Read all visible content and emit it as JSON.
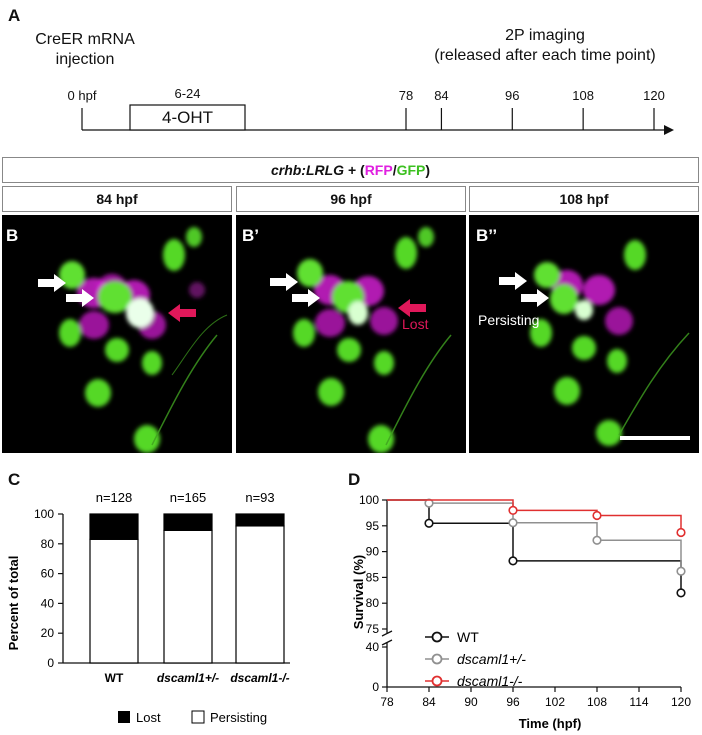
{
  "panel_a": {
    "letter": "A",
    "left_label_1": "CreER mRNA",
    "left_label_2": "injection",
    "right_label_1": "2P imaging",
    "right_label_2": "(released after each time point)",
    "box_label": "4-OHT",
    "box_range_label": "6-24",
    "ticks": [
      {
        "label": "0 hpf",
        "hpf": 0
      },
      {
        "label": "78",
        "hpf": 78
      },
      {
        "label": "84",
        "hpf": 84
      },
      {
        "label": "96",
        "hpf": 96
      },
      {
        "label": "108",
        "hpf": 108
      },
      {
        "label": "120",
        "hpf": 120
      }
    ],
    "box_start_hpf": 6,
    "box_end_hpf": 24
  },
  "panel_b": {
    "header_construct": "crhb:LRLG",
    "header_plus": " + (",
    "header_rfp": "RFP",
    "header_slash": "/",
    "header_gfp": "GFP",
    "header_close": ")",
    "rfp_color": "#e020e0",
    "gfp_color": "#50d020",
    "columns": [
      {
        "time": "84 hpf",
        "letter": "B"
      },
      {
        "time": "96 hpf",
        "letter": "B’"
      },
      {
        "time": "108 hpf",
        "letter": "B’’"
      }
    ],
    "lost_label": "Lost",
    "persisting_label": "Persisting",
    "lost_arrow_color": "#e0185a"
  },
  "panel_c": {
    "letter": "C",
    "ylabel": "Percent of total",
    "legend_lost": "Lost",
    "legend_persisting": "Persisting",
    "chart_data": {
      "type": "bar",
      "stacked": true,
      "categories": [
        "WT",
        "dscaml1+/-",
        "dscaml1-/-"
      ],
      "counts": [
        "n=128",
        "n=165",
        "n=93"
      ],
      "series": [
        {
          "name": "Persisting",
          "values": [
            83,
            89,
            92
          ],
          "color": "#ffffff"
        },
        {
          "name": "Lost",
          "values": [
            17,
            11,
            8
          ],
          "color": "#000000"
        }
      ],
      "ylim": [
        0,
        100
      ],
      "yticks": [
        0,
        20,
        40,
        60,
        80,
        100
      ],
      "legend_position": "bottom"
    }
  },
  "panel_d": {
    "letter": "D",
    "chart_data": {
      "type": "line",
      "step": true,
      "xlabel": "Time (hpf)",
      "ylabel": "Survival (%)",
      "xlim": [
        78,
        120
      ],
      "xticks": [
        78,
        84,
        90,
        96,
        102,
        108,
        114,
        120
      ],
      "yticks_upper": [
        75,
        80,
        85,
        90,
        95,
        100
      ],
      "yticks_lower": [
        0,
        40
      ],
      "axis_break": true,
      "series": [
        {
          "name": "WT",
          "color": "#111111",
          "x": [
            84,
            96,
            120
          ],
          "y": [
            95.5,
            88.2,
            82.0
          ],
          "start": 100
        },
        {
          "name": "dscaml1+/-",
          "color": "#909090",
          "x": [
            84,
            96,
            108,
            120
          ],
          "y": [
            99.4,
            95.6,
            92.2,
            86.2
          ],
          "start": 100
        },
        {
          "name": "dscaml1-/-",
          "color": "#e03030",
          "x": [
            96,
            108,
            120
          ],
          "y": [
            98.0,
            97.0,
            93.7
          ],
          "start": 100
        }
      ],
      "legend_position": "bottom-left"
    }
  }
}
